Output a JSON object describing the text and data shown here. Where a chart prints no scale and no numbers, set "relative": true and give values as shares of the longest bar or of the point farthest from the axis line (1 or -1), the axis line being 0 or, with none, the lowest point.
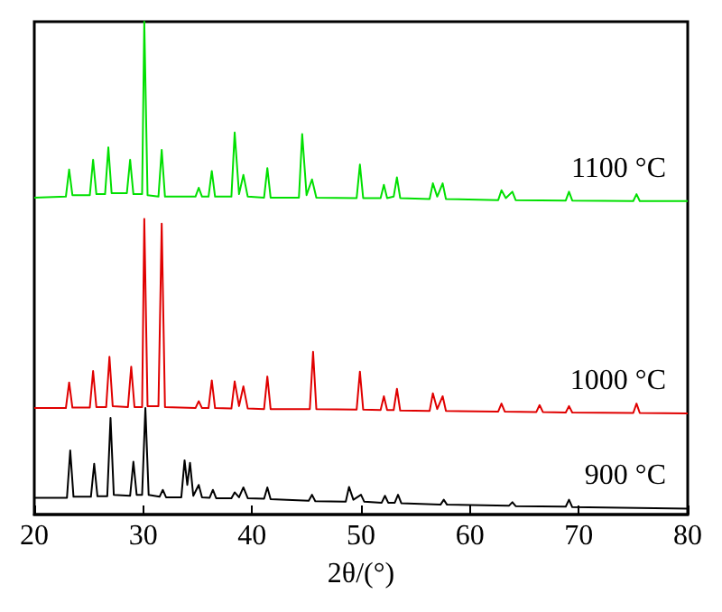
{
  "chart_data": {
    "type": "line",
    "xlabel": "2θ/(°)",
    "xlim": [
      20,
      80
    ],
    "xticks": [
      20,
      30,
      40,
      50,
      60,
      70,
      80
    ],
    "relative": true,
    "marker": "none",
    "line_style": "solid",
    "series": [
      {
        "name": "900 °C",
        "color": "#000000",
        "x": [
          20,
          23.0,
          23.3,
          23.6,
          25.2,
          25.5,
          25.8,
          26.7,
          27.0,
          27.3,
          28.8,
          29.1,
          29.4,
          29.9,
          30.2,
          30.5,
          31.5,
          31.8,
          32.1,
          33.5,
          33.8,
          34.05,
          34.3,
          34.6,
          35.1,
          35.4,
          36.1,
          36.4,
          36.7,
          38.1,
          38.4,
          38.8,
          39.2,
          39.6,
          41.1,
          41.4,
          41.7,
          45.2,
          45.5,
          45.8,
          48.6,
          48.9,
          49.3,
          50.0,
          50.3,
          51.9,
          52.2,
          52.5,
          53.1,
          53.4,
          53.7,
          57.3,
          57.6,
          57.9,
          63.6,
          63.9,
          64.2,
          68.8,
          69.1,
          69.4,
          80
        ],
        "values": [
          0.034,
          0.034,
          0.13,
          0.036,
          0.036,
          0.103,
          0.037,
          0.037,
          0.196,
          0.04,
          0.038,
          0.107,
          0.04,
          0.04,
          0.216,
          0.04,
          0.036,
          0.05,
          0.035,
          0.035,
          0.11,
          0.06,
          0.105,
          0.038,
          0.06,
          0.035,
          0.034,
          0.05,
          0.033,
          0.033,
          0.045,
          0.035,
          0.055,
          0.033,
          0.032,
          0.055,
          0.031,
          0.028,
          0.04,
          0.027,
          0.026,
          0.056,
          0.03,
          0.04,
          0.026,
          0.024,
          0.038,
          0.024,
          0.024,
          0.04,
          0.023,
          0.02,
          0.03,
          0.02,
          0.018,
          0.025,
          0.017,
          0.016,
          0.03,
          0.015,
          0.012
        ]
      },
      {
        "name": "1000 °C",
        "color": "#e00000",
        "x": [
          20,
          22.9,
          23.2,
          23.5,
          25.1,
          25.4,
          25.7,
          26.6,
          26.9,
          27.2,
          28.6,
          28.9,
          29.2,
          29.9,
          30.1,
          30.4,
          31.4,
          31.7,
          32.0,
          34.8,
          35.1,
          35.4,
          36.0,
          36.3,
          36.6,
          38.1,
          38.4,
          38.8,
          39.2,
          39.6,
          41.1,
          41.4,
          41.7,
          45.3,
          45.6,
          45.9,
          49.6,
          49.9,
          50.2,
          51.8,
          52.1,
          52.4,
          53.0,
          53.3,
          53.6,
          56.3,
          56.6,
          57.0,
          57.5,
          57.8,
          62.6,
          62.9,
          63.2,
          66.1,
          66.4,
          66.7,
          68.8,
          69.1,
          69.4,
          75.0,
          75.3,
          75.6,
          80
        ],
        "values": [
          0.216,
          0.216,
          0.268,
          0.217,
          0.217,
          0.291,
          0.218,
          0.218,
          0.32,
          0.22,
          0.218,
          0.3,
          0.218,
          0.218,
          0.6,
          0.22,
          0.22,
          0.59,
          0.218,
          0.216,
          0.23,
          0.216,
          0.216,
          0.272,
          0.216,
          0.215,
          0.27,
          0.22,
          0.26,
          0.215,
          0.214,
          0.28,
          0.214,
          0.214,
          0.33,
          0.214,
          0.213,
          0.29,
          0.213,
          0.212,
          0.24,
          0.212,
          0.212,
          0.255,
          0.211,
          0.21,
          0.246,
          0.214,
          0.24,
          0.21,
          0.209,
          0.225,
          0.209,
          0.208,
          0.222,
          0.208,
          0.207,
          0.22,
          0.207,
          0.206,
          0.225,
          0.206,
          0.205
        ]
      },
      {
        "name": "1100 °C",
        "color": "#00e000",
        "x": [
          20,
          22.9,
          23.2,
          23.5,
          25.1,
          25.4,
          25.7,
          26.5,
          26.8,
          27.1,
          28.5,
          28.8,
          29.1,
          29.9,
          30.1,
          30.4,
          31.4,
          31.7,
          32.0,
          34.8,
          35.1,
          35.4,
          36.0,
          36.3,
          36.6,
          38.1,
          38.4,
          38.8,
          39.2,
          39.6,
          41.1,
          41.4,
          41.7,
          44.3,
          44.6,
          45.0,
          45.5,
          45.9,
          49.6,
          49.9,
          50.2,
          51.8,
          52.1,
          52.4,
          53.0,
          53.3,
          53.6,
          56.3,
          56.6,
          57.0,
          57.5,
          57.8,
          62.6,
          62.9,
          63.3,
          63.9,
          64.2,
          68.8,
          69.1,
          69.4,
          75.0,
          75.3,
          75.6,
          80
        ],
        "values": [
          0.643,
          0.645,
          0.7,
          0.648,
          0.648,
          0.72,
          0.65,
          0.65,
          0.745,
          0.652,
          0.652,
          0.72,
          0.65,
          0.65,
          1.0,
          0.648,
          0.645,
          0.74,
          0.645,
          0.645,
          0.663,
          0.645,
          0.645,
          0.697,
          0.645,
          0.645,
          0.775,
          0.65,
          0.689,
          0.645,
          0.643,
          0.703,
          0.643,
          0.643,
          0.772,
          0.648,
          0.68,
          0.643,
          0.642,
          0.71,
          0.642,
          0.642,
          0.669,
          0.642,
          0.645,
          0.684,
          0.642,
          0.64,
          0.672,
          0.645,
          0.672,
          0.64,
          0.638,
          0.658,
          0.642,
          0.655,
          0.638,
          0.637,
          0.655,
          0.637,
          0.636,
          0.65,
          0.636,
          0.636
        ]
      }
    ]
  }
}
